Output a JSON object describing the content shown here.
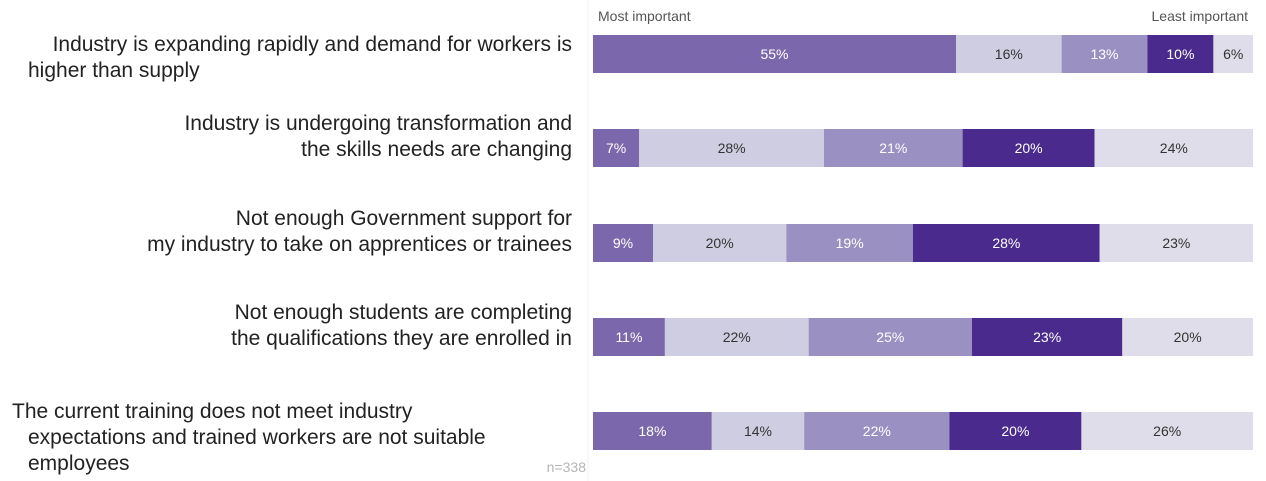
{
  "chart_data": {
    "type": "bar",
    "orientation": "horizontal",
    "stacked": true,
    "scale_start_label": "Most important",
    "scale_end_label": "Least important",
    "note": "n=338",
    "categories": [
      "Industry is expanding rapidly and demand for workers is higher than supply",
      "Industry is undergoing transformation and the skills needs are changing",
      "Not enough Government support for my industry to take on apprentices or trainees",
      "Not enough students are completing the qualifications they are enrolled in",
      "The current training does not meet industry expectations and trained workers are not suitable employees"
    ],
    "category_lines": [
      [
        "Industry is expanding rapidly and demand for workers is",
        "higher than supply"
      ],
      [
        "Industry is undergoing transformation and",
        "the skills needs are changing"
      ],
      [
        "Not enough Government support for",
        "my industry to take on apprentices or trainees"
      ],
      [
        "Not enough students are completing",
        "the qualifications they are enrolled in"
      ],
      [
        "The current training does not meet industry",
        "expectations and trained workers are not suitable",
        "employees"
      ]
    ],
    "series": [
      {
        "rank": 1,
        "values": [
          55,
          7,
          9,
          11,
          18
        ],
        "color": "#7b68ac",
        "text_color": "#ffffff"
      },
      {
        "rank": 2,
        "values": [
          16,
          28,
          20,
          22,
          14
        ],
        "color": "#cfcde1",
        "text_color": "#333333"
      },
      {
        "rank": 3,
        "values": [
          13,
          21,
          19,
          25,
          22
        ],
        "color": "#9b90c2",
        "text_color": "#ffffff"
      },
      {
        "rank": 4,
        "values": [
          10,
          20,
          28,
          23,
          20
        ],
        "color": "#4a2a8c",
        "text_color": "#ffffff"
      },
      {
        "rank": 5,
        "values": [
          6,
          24,
          23,
          20,
          26
        ],
        "color": "#dedde9",
        "text_color": "#333333"
      }
    ],
    "value_suffix": "%",
    "grid": false,
    "legend": "none"
  }
}
